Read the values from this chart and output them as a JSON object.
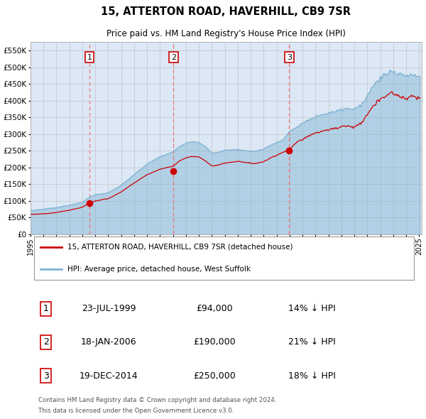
{
  "title": "15, ATTERTON ROAD, HAVERHILL, CB9 7SR",
  "subtitle": "Price paid vs. HM Land Registry's House Price Index (HPI)",
  "legend_line1": "15, ATTERTON ROAD, HAVERHILL, CB9 7SR (detached house)",
  "legend_line2": "HPI: Average price, detached house, West Suffolk",
  "footer1": "Contains HM Land Registry data © Crown copyright and database right 2024.",
  "footer2": "This data is licensed under the Open Government Licence v3.0.",
  "transactions": [
    {
      "label": "1",
      "date": "23-JUL-1999",
      "price": 94000,
      "hpi_diff": "14% ↓ HPI"
    },
    {
      "label": "2",
      "date": "18-JAN-2006",
      "price": 190000,
      "hpi_diff": "21% ↓ HPI"
    },
    {
      "label": "3",
      "date": "19-DEC-2014",
      "price": 250000,
      "hpi_diff": "18% ↓ HPI"
    }
  ],
  "transaction_years": [
    1999.55,
    2006.05,
    2014.97
  ],
  "transaction_prices": [
    94000,
    190000,
    250000
  ],
  "ylim": [
    0,
    575000
  ],
  "yticks": [
    0,
    50000,
    100000,
    150000,
    200000,
    250000,
    300000,
    350000,
    400000,
    450000,
    500000,
    550000
  ],
  "hpi_color": "#7fb3d3",
  "price_color": "#cc0000",
  "vline_color": "#ff6666",
  "grid_color": "#cccccc",
  "plot_bg": "#dce8f5",
  "box_edge_color": "#cc0000"
}
